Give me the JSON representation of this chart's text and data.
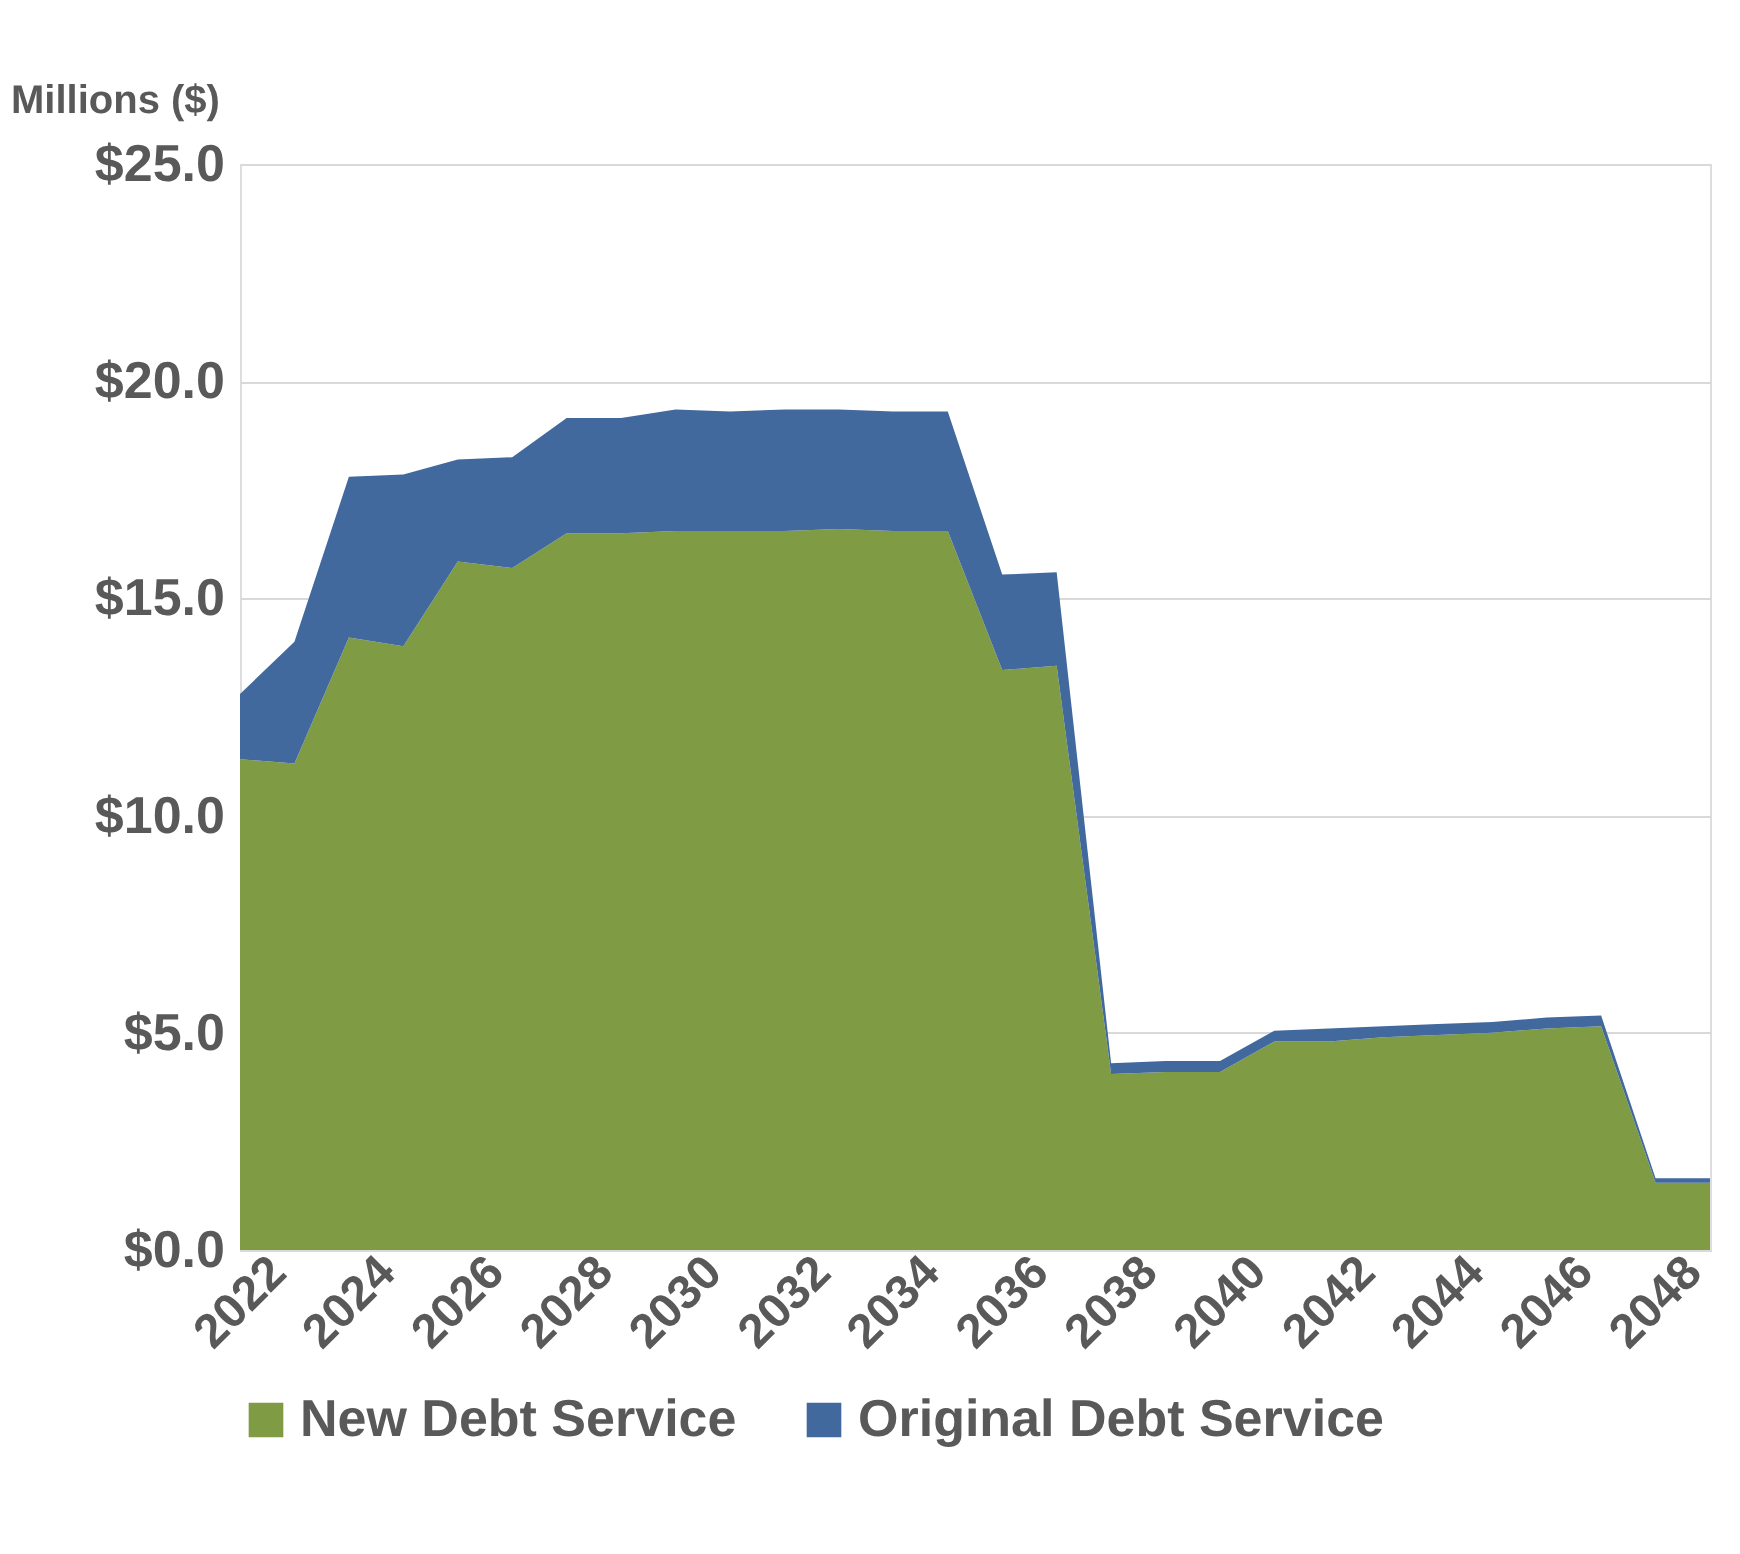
{
  "chart_data": {
    "type": "area",
    "stacked": true,
    "ylabel": "Millions ($)",
    "x": [
      2022,
      2023,
      2024,
      2025,
      2026,
      2027,
      2028,
      2029,
      2030,
      2031,
      2032,
      2033,
      2034,
      2035,
      2036,
      2037,
      2038,
      2039,
      2040,
      2041,
      2042,
      2043,
      2044,
      2045,
      2046,
      2047,
      2048,
      2049
    ],
    "series": [
      {
        "name": "New Debt Service",
        "color": "#7f9c45",
        "values": [
          11.3,
          11.2,
          14.1,
          13.9,
          15.85,
          15.7,
          16.5,
          16.5,
          16.55,
          16.55,
          16.55,
          16.6,
          16.55,
          16.55,
          13.35,
          13.45,
          4.05,
          4.1,
          4.1,
          4.8,
          4.8,
          4.9,
          4.95,
          5.0,
          5.1,
          5.15,
          1.55,
          1.55
        ]
      },
      {
        "name": "Original Debt Service",
        "color": "#41699e",
        "values": [
          1.5,
          2.8,
          3.7,
          3.95,
          2.35,
          2.55,
          2.65,
          2.65,
          2.8,
          2.75,
          2.8,
          2.75,
          2.75,
          2.75,
          2.2,
          2.15,
          0.25,
          0.25,
          0.25,
          0.25,
          0.3,
          0.25,
          0.25,
          0.25,
          0.25,
          0.25,
          0.1,
          0.1
        ]
      }
    ],
    "xlim": [
      2022,
      2049
    ],
    "xticks": [
      2022,
      2024,
      2026,
      2028,
      2030,
      2032,
      2034,
      2036,
      2038,
      2040,
      2042,
      2044,
      2046,
      2048
    ],
    "ylim": [
      0,
      25
    ],
    "yticks": [
      {
        "value": 0,
        "label": "$0.0"
      },
      {
        "value": 5,
        "label": "$5.0"
      },
      {
        "value": 10,
        "label": "$10.0"
      },
      {
        "value": 15,
        "label": "$15.0"
      },
      {
        "value": 20,
        "label": "$20.0"
      },
      {
        "value": 25,
        "label": "$25.0"
      }
    ],
    "grid": "y",
    "legend": "bottom"
  }
}
